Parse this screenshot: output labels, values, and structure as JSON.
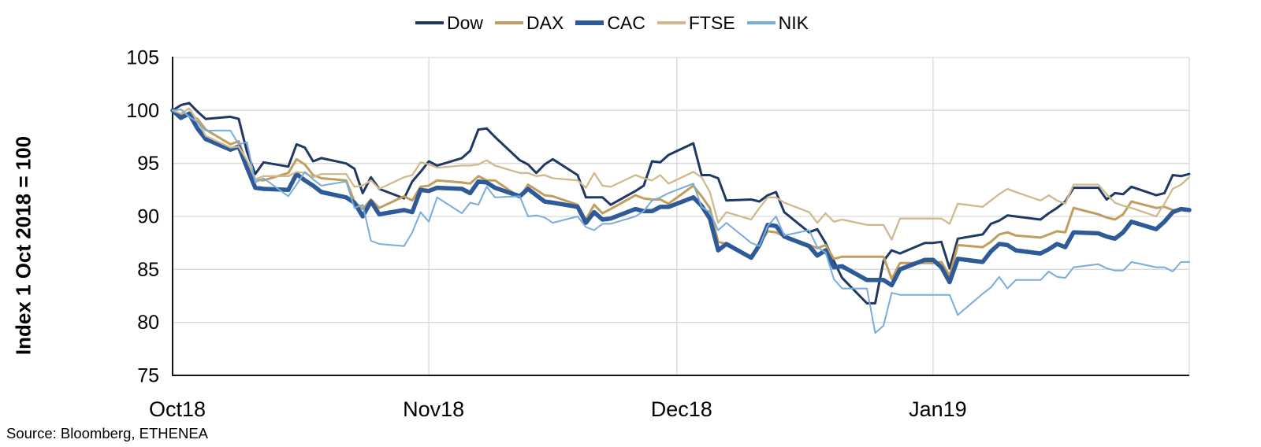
{
  "source": "Source: Bloomberg, ETHENEA",
  "chart_data": {
    "type": "line",
    "title": "",
    "xlabel": "",
    "ylabel": "Index 1 Oct 2018 = 100",
    "ylim": [
      75,
      105
    ],
    "y_ticks": [
      75,
      80,
      85,
      90,
      95,
      100,
      105
    ],
    "grid": true,
    "legend_position": "top",
    "x_range": [
      "2018-10-01",
      "2019-02-01"
    ],
    "x_tick_dates": [
      "2018-10-01",
      "2018-11-01",
      "2018-12-01",
      "2019-01-01"
    ],
    "x_tick_labels": [
      "Oct18",
      "Nov18",
      "Dec18",
      "Jan19"
    ],
    "x_dates": [
      "2018-10-01",
      "2018-10-02",
      "2018-10-03",
      "2018-10-04",
      "2018-10-05",
      "2018-10-08",
      "2018-10-09",
      "2018-10-10",
      "2018-10-11",
      "2018-10-12",
      "2018-10-15",
      "2018-10-16",
      "2018-10-17",
      "2018-10-18",
      "2018-10-19",
      "2018-10-22",
      "2018-10-23",
      "2018-10-24",
      "2018-10-25",
      "2018-10-26",
      "2018-10-29",
      "2018-10-30",
      "2018-10-31",
      "2018-11-01",
      "2018-11-02",
      "2018-11-05",
      "2018-11-06",
      "2018-11-07",
      "2018-11-08",
      "2018-11-09",
      "2018-11-12",
      "2018-11-13",
      "2018-11-14",
      "2018-11-15",
      "2018-11-16",
      "2018-11-19",
      "2018-11-20",
      "2018-11-21",
      "2018-11-22",
      "2018-11-23",
      "2018-11-26",
      "2018-11-27",
      "2018-11-28",
      "2018-11-29",
      "2018-11-30",
      "2018-12-03",
      "2018-12-04",
      "2018-12-05",
      "2018-12-06",
      "2018-12-07",
      "2018-12-10",
      "2018-12-11",
      "2018-12-12",
      "2018-12-13",
      "2018-12-14",
      "2018-12-17",
      "2018-12-18",
      "2018-12-19",
      "2018-12-20",
      "2018-12-21",
      "2018-12-24",
      "2018-12-25",
      "2018-12-26",
      "2018-12-27",
      "2018-12-28",
      "2018-12-31",
      "2019-01-01",
      "2019-01-02",
      "2019-01-03",
      "2019-01-04",
      "2019-01-07",
      "2019-01-08",
      "2019-01-09",
      "2019-01-10",
      "2019-01-11",
      "2019-01-14",
      "2019-01-15",
      "2019-01-16",
      "2019-01-17",
      "2019-01-18",
      "2019-01-21",
      "2019-01-22",
      "2019-01-23",
      "2019-01-24",
      "2019-01-25",
      "2019-01-28",
      "2019-01-29",
      "2019-01-30",
      "2019-01-31",
      "2019-02-01"
    ],
    "series": [
      {
        "name": "Dow",
        "color": "#1F3864",
        "width": 3,
        "values": [
          100.0,
          100.5,
          100.7,
          99.9,
          99.2,
          99.4,
          99.2,
          96.1,
          94.0,
          95.1,
          94.7,
          96.8,
          96.5,
          95.2,
          95.5,
          95.0,
          94.5,
          92.2,
          93.7,
          92.6,
          91.7,
          93.3,
          94.2,
          95.2,
          94.8,
          95.5,
          96.2,
          98.2,
          98.3,
          97.5,
          95.3,
          94.9,
          94.1,
          94.9,
          95.4,
          93.9,
          91.8,
          91.8,
          91.8,
          91.1,
          92.4,
          92.9,
          95.2,
          95.1,
          95.8,
          96.9,
          93.9,
          93.9,
          93.6,
          91.5,
          91.6,
          91.4,
          92.0,
          92.3,
          90.4,
          88.5,
          88.8,
          87.5,
          85.8,
          84.2,
          81.8,
          81.8,
          85.8,
          86.8,
          86.5,
          87.5,
          87.5,
          87.6,
          85.1,
          87.9,
          88.3,
          89.3,
          89.6,
          90.1,
          90.0,
          89.7,
          90.3,
          90.8,
          91.4,
          92.7,
          92.7,
          91.6,
          92.2,
          92.1,
          92.8,
          92.0,
          92.2,
          93.9,
          93.8,
          94.0
        ]
      },
      {
        "name": "DAX",
        "color": "#C19E5E",
        "width": 3,
        "values": [
          100.0,
          99.6,
          99.6,
          99.2,
          98.2,
          96.8,
          97.1,
          94.9,
          93.5,
          93.4,
          94.1,
          95.4,
          94.9,
          93.9,
          93.6,
          93.4,
          91.4,
          90.7,
          91.6,
          90.8,
          91.9,
          91.5,
          92.8,
          92.9,
          93.4,
          93.2,
          93.1,
          93.8,
          93.4,
          93.4,
          91.8,
          93.0,
          92.5,
          92.0,
          91.9,
          91.1,
          89.7,
          91.1,
          90.3,
          90.7,
          92.0,
          91.7,
          91.6,
          91.6,
          91.2,
          92.9,
          91.9,
          90.8,
          87.6,
          87.4,
          86.1,
          87.4,
          88.6,
          88.5,
          88.1,
          87.3,
          87.0,
          87.3,
          86.0,
          86.2,
          86.2,
          86.2,
          86.2,
          84.1,
          85.6,
          85.6,
          85.6,
          85.7,
          84.4,
          87.3,
          87.1,
          87.6,
          88.3,
          88.5,
          88.2,
          88.0,
          88.3,
          88.6,
          88.5,
          90.8,
          90.2,
          89.9,
          89.7,
          90.2,
          91.4,
          90.8,
          90.9,
          90.6,
          90.6,
          90.6
        ]
      },
      {
        "name": "CAC",
        "color": "#2E5B97",
        "width": 5.5,
        "values": [
          100.0,
          99.3,
          99.7,
          98.3,
          97.3,
          96.3,
          96.6,
          94.6,
          92.7,
          92.6,
          92.5,
          94.0,
          93.4,
          92.9,
          92.3,
          91.8,
          91.3,
          90.0,
          91.4,
          90.2,
          90.6,
          90.4,
          92.5,
          92.4,
          92.7,
          92.6,
          92.2,
          93.3,
          93.2,
          92.7,
          91.9,
          92.6,
          92.0,
          91.4,
          91.3,
          90.9,
          89.4,
          90.4,
          89.7,
          89.8,
          90.7,
          90.5,
          90.5,
          90.9,
          90.9,
          91.8,
          91.0,
          89.8,
          86.8,
          87.4,
          86.1,
          87.3,
          89.2,
          89.1,
          88.1,
          87.2,
          86.3,
          86.8,
          85.2,
          85.3,
          84.0,
          84.0,
          84.0,
          83.5,
          85.0,
          85.9,
          85.9,
          85.2,
          83.8,
          86.0,
          85.7,
          86.7,
          87.4,
          87.3,
          86.8,
          86.5,
          86.9,
          87.4,
          87.1,
          88.5,
          88.4,
          88.1,
          87.9,
          88.5,
          89.5,
          88.8,
          89.5,
          90.4,
          90.7,
          90.6
        ]
      },
      {
        "name": "FTSE",
        "color": "#D0B98C",
        "width": 2.3,
        "values": [
          100.0,
          99.7,
          100.2,
          99.0,
          97.6,
          96.5,
          96.6,
          95.3,
          93.5,
          93.8,
          93.8,
          94.2,
          94.1,
          93.7,
          94.0,
          94.0,
          92.8,
          92.9,
          93.4,
          92.6,
          93.7,
          93.9,
          95.1,
          94.9,
          94.6,
          94.8,
          94.8,
          94.9,
          95.3,
          94.8,
          94.1,
          94.1,
          93.8,
          93.9,
          93.6,
          93.4,
          92.7,
          94.1,
          92.9,
          92.8,
          93.9,
          93.6,
          93.4,
          93.9,
          93.1,
          94.2,
          93.7,
          92.3,
          89.4,
          90.4,
          89.7,
          90.8,
          91.8,
          91.8,
          91.3,
          90.4,
          89.4,
          90.3,
          89.5,
          89.7,
          89.2,
          89.2,
          89.2,
          87.8,
          89.8,
          89.8,
          89.8,
          89.8,
          89.3,
          91.2,
          90.9,
          91.5,
          92.1,
          92.6,
          92.3,
          91.5,
          92.0,
          91.5,
          91.2,
          93.0,
          93.0,
          92.1,
          91.3,
          91.0,
          90.8,
          90.0,
          91.2,
          92.6,
          93.0,
          93.7
        ]
      },
      {
        "name": "NIK",
        "color": "#78ACDC",
        "width": 2,
        "values": [
          100.0,
          100.1,
          99.4,
          98.9,
          98.1,
          98.1,
          96.8,
          97.0,
          93.2,
          93.6,
          91.9,
          93.0,
          94.2,
          93.5,
          92.9,
          93.3,
          90.8,
          91.1,
          87.7,
          87.4,
          87.2,
          88.5,
          90.4,
          89.5,
          91.8,
          90.3,
          91.3,
          91.1,
          92.8,
          91.8,
          91.9,
          90.0,
          90.1,
          89.9,
          89.4,
          90.0,
          89.0,
          88.7,
          89.3,
          89.3,
          90.0,
          90.5,
          91.5,
          91.8,
          92.2,
          93.1,
          90.9,
          90.4,
          88.7,
          89.4,
          87.5,
          87.2,
          89.1,
          90.0,
          88.2,
          88.7,
          87.1,
          86.6,
          84.1,
          83.2,
          83.2,
          79.0,
          79.7,
          82.8,
          82.6,
          82.6,
          82.6,
          82.6,
          82.6,
          80.7,
          82.7,
          83.3,
          84.3,
          83.2,
          84.0,
          84.0,
          84.8,
          84.3,
          84.2,
          85.2,
          85.5,
          85.1,
          84.9,
          84.9,
          85.7,
          85.2,
          85.2,
          84.8,
          85.7,
          85.7
        ]
      }
    ],
    "style": {
      "gridline_color": "#D9D9D9",
      "axis_color": "#161616"
    }
  }
}
